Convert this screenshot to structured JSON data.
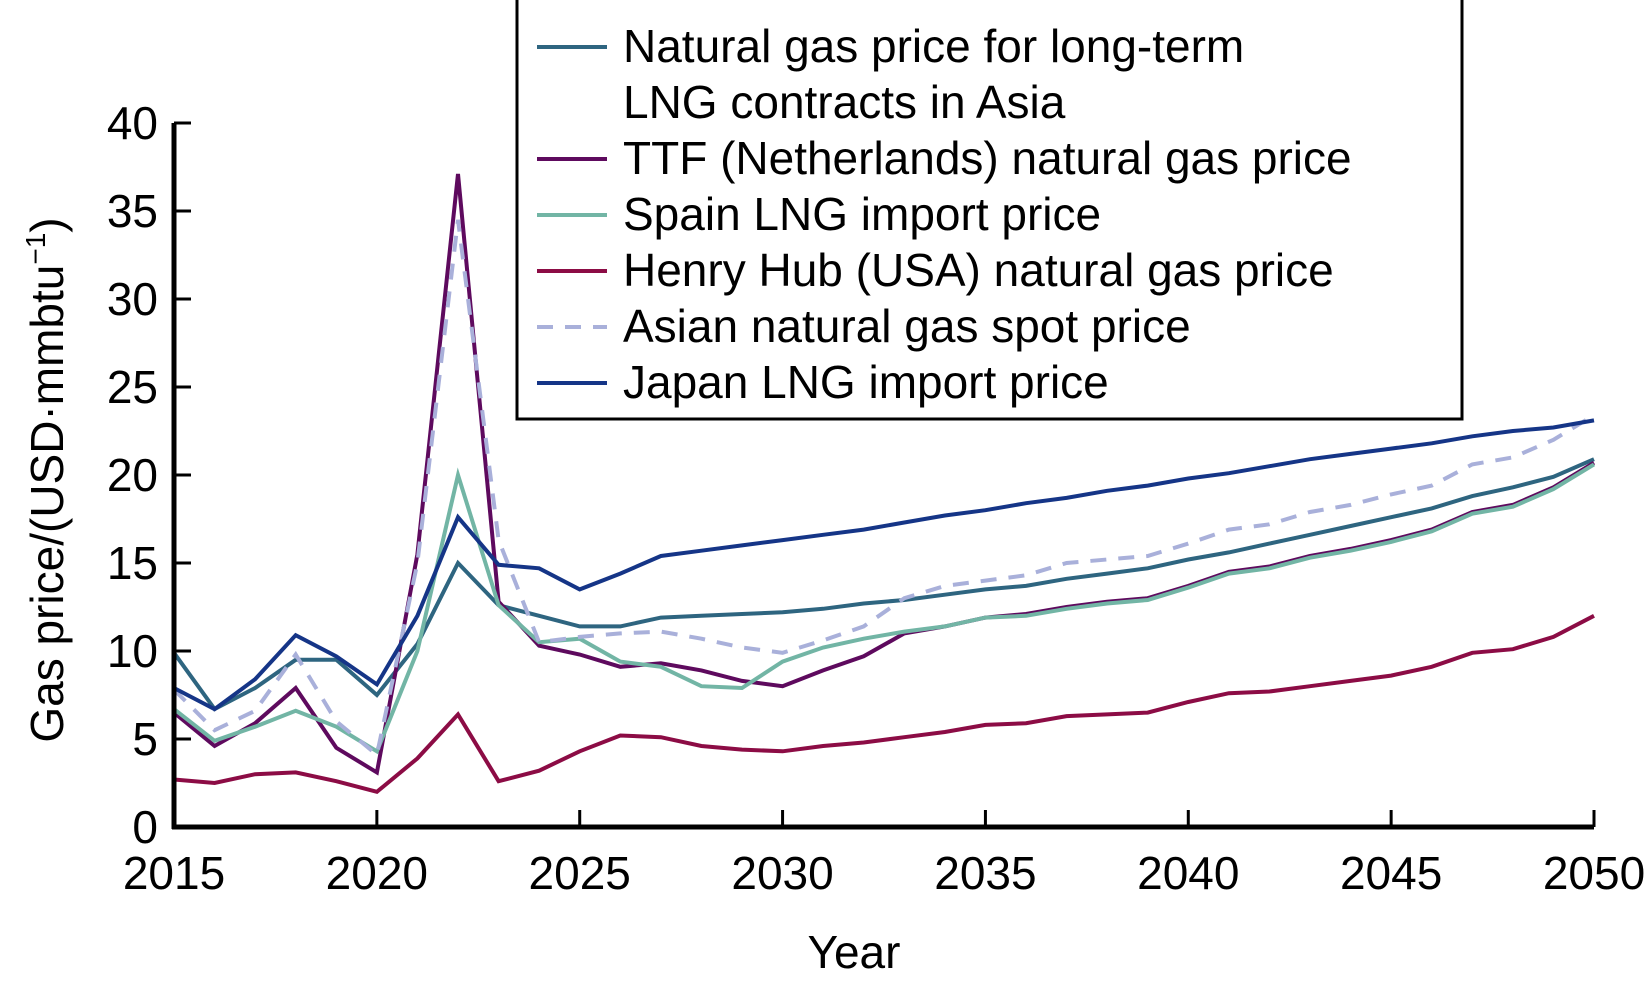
{
  "chart_data": {
    "type": "line",
    "title": "",
    "xlabel": "Year",
    "ylabel": "Gas price/(USD·mmbtu",
    "ylabel_superscript": "−1",
    "ylabel_suffix": ")",
    "xlim": [
      2015,
      2050
    ],
    "ylim": [
      0,
      40
    ],
    "x_ticks": [
      2015,
      2020,
      2025,
      2030,
      2035,
      2040,
      2045,
      2050
    ],
    "y_ticks": [
      0,
      5,
      10,
      15,
      20,
      25,
      30,
      35,
      40
    ],
    "grid": false,
    "legend_position": "top-center",
    "x": [
      2015,
      2016,
      2017,
      2018,
      2019,
      2020,
      2021,
      2022,
      2023,
      2024,
      2025,
      2026,
      2027,
      2028,
      2029,
      2030,
      2031,
      2032,
      2033,
      2034,
      2035,
      2036,
      2037,
      2038,
      2039,
      2040,
      2041,
      2042,
      2043,
      2044,
      2045,
      2046,
      2047,
      2048,
      2049,
      2050
    ],
    "series": [
      {
        "name": "Natural gas price for long-term LNG contracts in Asia",
        "legend_lines": [
          "Natural gas price for long-term",
          "LNG contracts in Asia"
        ],
        "color": "#2E6580",
        "dashed": false,
        "values": [
          9.9,
          6.7,
          7.9,
          9.5,
          9.5,
          7.5,
          10.4,
          15.0,
          12.6,
          12.0,
          11.4,
          11.4,
          11.9,
          12.0,
          12.1,
          12.2,
          12.4,
          12.7,
          12.9,
          13.2,
          13.5,
          13.7,
          14.1,
          14.4,
          14.7,
          15.2,
          15.6,
          16.1,
          16.6,
          17.1,
          17.6,
          18.1,
          18.8,
          19.3,
          19.9,
          20.9
        ]
      },
      {
        "name": "TTF (Netherlands) natural gas price",
        "legend_lines": [
          "TTF (Netherlands) natural gas price"
        ],
        "color": "#5E0A5E",
        "dashed": false,
        "values": [
          6.5,
          4.6,
          5.9,
          7.9,
          4.5,
          3.1,
          15.5,
          37.1,
          12.8,
          10.3,
          9.8,
          9.1,
          9.3,
          8.9,
          8.3,
          8.0,
          8.9,
          9.7,
          11.0,
          11.4,
          11.9,
          12.1,
          12.5,
          12.8,
          13.0,
          13.7,
          14.5,
          14.8,
          15.4,
          15.8,
          16.3,
          16.9,
          17.9,
          18.3,
          19.3,
          20.7
        ]
      },
      {
        "name": "Spain LNG import price",
        "legend_lines": [
          "Spain LNG import price"
        ],
        "color": "#72B5A5",
        "dashed": false,
        "values": [
          6.7,
          4.9,
          5.7,
          6.6,
          5.7,
          4.3,
          10.0,
          20.0,
          12.6,
          10.5,
          10.7,
          9.4,
          9.1,
          8.0,
          7.9,
          9.4,
          10.2,
          10.7,
          11.1,
          11.4,
          11.9,
          12.0,
          12.4,
          12.7,
          12.9,
          13.6,
          14.4,
          14.7,
          15.3,
          15.7,
          16.2,
          16.8,
          17.8,
          18.2,
          19.2,
          20.6
        ]
      },
      {
        "name": "Henry Hub (USA) natural gas price",
        "legend_lines": [
          "Henry Hub (USA) natural gas price"
        ],
        "color": "#8C0C45",
        "dashed": false,
        "values": [
          2.7,
          2.5,
          3.0,
          3.1,
          2.6,
          2.0,
          3.9,
          6.4,
          2.6,
          3.2,
          4.3,
          5.2,
          5.1,
          4.6,
          4.4,
          4.3,
          4.6,
          4.8,
          5.1,
          5.4,
          5.8,
          5.9,
          6.3,
          6.4,
          6.5,
          7.1,
          7.6,
          7.7,
          8.0,
          8.3,
          8.6,
          9.1,
          9.9,
          10.1,
          10.8,
          12.0
        ]
      },
      {
        "name": "Asian natural gas spot price",
        "legend_lines": [
          "Asian natural gas spot price"
        ],
        "color": "#A9B0DA",
        "dashed": true,
        "values": [
          7.8,
          5.5,
          6.6,
          9.8,
          6.0,
          4.1,
          15.0,
          34.5,
          16.3,
          10.5,
          10.8,
          11.0,
          11.1,
          10.7,
          10.2,
          9.9,
          10.6,
          11.4,
          13.0,
          13.7,
          14.0,
          14.3,
          15.0,
          15.2,
          15.4,
          16.1,
          16.9,
          17.2,
          17.9,
          18.3,
          18.9,
          19.4,
          20.6,
          21.0,
          22.0,
          23.4
        ]
      },
      {
        "name": "Japan LNG import price",
        "legend_lines": [
          "Japan LNG import price"
        ],
        "color": "#153587",
        "dashed": false,
        "values": [
          7.9,
          6.7,
          8.4,
          10.9,
          9.7,
          8.1,
          12.0,
          17.6,
          14.9,
          14.7,
          13.5,
          14.4,
          15.4,
          15.7,
          16.0,
          16.3,
          16.6,
          16.9,
          17.3,
          17.7,
          18.0,
          18.4,
          18.7,
          19.1,
          19.4,
          19.8,
          20.1,
          20.5,
          20.9,
          21.2,
          21.5,
          21.8,
          22.2,
          22.5,
          22.7,
          23.1
        ]
      }
    ]
  }
}
